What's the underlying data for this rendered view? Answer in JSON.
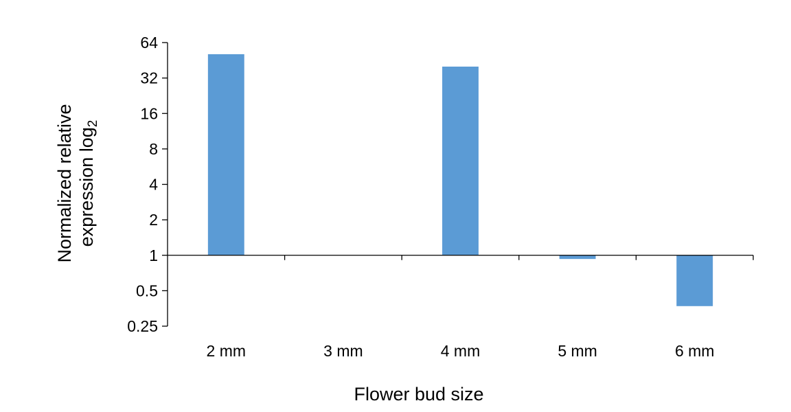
{
  "chart_data": {
    "type": "bar",
    "categories": [
      "2 mm",
      "3 mm",
      "4 mm",
      "5 mm",
      "6 mm"
    ],
    "values": [
      51,
      1,
      40,
      0.93,
      0.37
    ],
    "title": "",
    "xlabel": "Flower bud size",
    "ylabel_line1": "Normalized relative",
    "ylabel_line2": "expression log",
    "ylabel_subscript": "2",
    "yscale": "log2",
    "ylim": [
      0.25,
      64
    ],
    "yticks": [
      0.25,
      0.5,
      1,
      2,
      4,
      8,
      16,
      32,
      64
    ],
    "ytick_labels": [
      "0.25",
      "0.5",
      "1",
      "2",
      "4",
      "8",
      "16",
      "32",
      "64"
    ],
    "baseline": 1,
    "bar_color": "#5b9bd5",
    "grid": false,
    "legend": "none"
  }
}
